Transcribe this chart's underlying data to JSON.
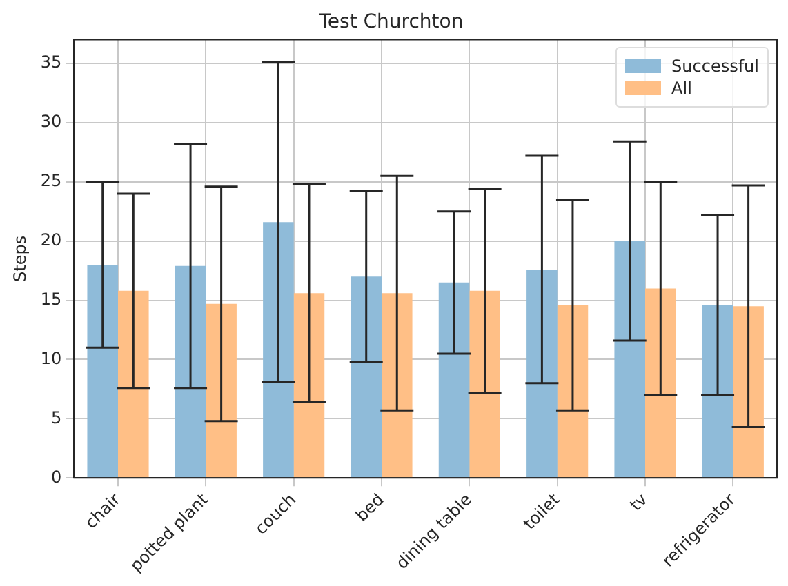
{
  "chart_data": {
    "type": "bar",
    "title": "Test Churchton",
    "ylabel": "Steps",
    "categories": [
      "chair",
      "potted plant",
      "couch",
      "bed",
      "dining table",
      "toilet",
      "tv",
      "refrigerator"
    ],
    "series": [
      {
        "name": "Successful",
        "color": "#8fbbd9",
        "values": [
          18.0,
          17.9,
          21.6,
          17.0,
          16.5,
          17.6,
          20.0,
          14.6
        ],
        "errors": [
          7.0,
          10.3,
          13.5,
          7.2,
          6.0,
          9.6,
          8.4,
          7.6
        ]
      },
      {
        "name": "All",
        "color": "#ffbf86",
        "values": [
          15.8,
          14.7,
          15.6,
          15.6,
          15.8,
          14.6,
          16.0,
          14.5
        ],
        "errors": [
          8.2,
          9.9,
          9.2,
          9.9,
          8.6,
          8.9,
          9.0,
          10.2
        ]
      }
    ],
    "ylim": [
      0,
      37
    ],
    "yticks": [
      0,
      5,
      10,
      15,
      20,
      25,
      30,
      35
    ],
    "grid": true,
    "legend": "top right"
  }
}
